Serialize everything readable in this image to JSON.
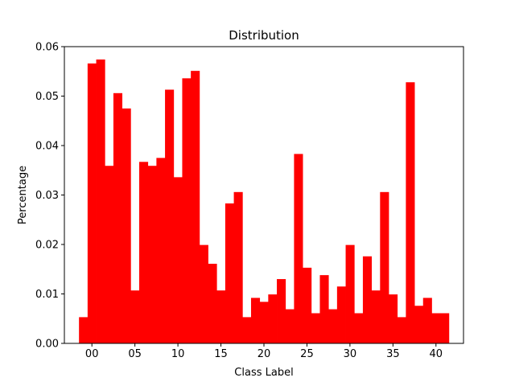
{
  "chart_data": {
    "type": "bar",
    "title": "Distribution",
    "xlabel": "Class Label",
    "ylabel": "Percentage",
    "color": "#ff0000",
    "grid": false,
    "legend": "none",
    "xlim": [
      -3.2,
      43.2
    ],
    "ylim": [
      0,
      0.06
    ],
    "x_ticks": [
      {
        "value": 0,
        "label": "00"
      },
      {
        "value": 5,
        "label": "05"
      },
      {
        "value": 10,
        "label": "10"
      },
      {
        "value": 15,
        "label": "15"
      },
      {
        "value": 20,
        "label": "20"
      },
      {
        "value": 25,
        "label": "25"
      },
      {
        "value": 30,
        "label": "30"
      },
      {
        "value": 35,
        "label": "35"
      },
      {
        "value": 40,
        "label": "40"
      }
    ],
    "y_ticks": [
      {
        "value": 0,
        "label": "0.00"
      },
      {
        "value": 0.01,
        "label": "0.01"
      },
      {
        "value": 0.02,
        "label": "0.02"
      },
      {
        "value": 0.03,
        "label": "0.03"
      },
      {
        "value": 0.04,
        "label": "0.04"
      },
      {
        "value": 0.05,
        "label": "0.05"
      },
      {
        "value": 0.06,
        "label": "0.06"
      }
    ],
    "categories": [
      -1,
      0,
      1,
      2,
      3,
      4,
      5,
      6,
      7,
      8,
      9,
      10,
      11,
      12,
      13,
      14,
      15,
      16,
      17,
      18,
      19,
      20,
      21,
      22,
      23,
      24,
      25,
      26,
      27,
      28,
      29,
      30,
      31,
      32,
      33,
      34,
      35,
      36,
      37,
      38,
      39,
      40,
      41
    ],
    "values": [
      0.0053,
      0.0566,
      0.0574,
      0.0359,
      0.0506,
      0.0475,
      0.0107,
      0.0367,
      0.0359,
      0.0375,
      0.0513,
      0.0336,
      0.0536,
      0.0551,
      0.0199,
      0.0161,
      0.0107,
      0.0283,
      0.0306,
      0.0053,
      0.0092,
      0.0084,
      0.0099,
      0.013,
      0.0069,
      0.0383,
      0.0153,
      0.0061,
      0.0138,
      0.0069,
      0.0115,
      0.0199,
      0.0061,
      0.0176,
      0.0107,
      0.0306,
      0.0099,
      0.0053,
      0.0528,
      0.0076,
      0.0092,
      0.0061,
      0.0061
    ]
  }
}
